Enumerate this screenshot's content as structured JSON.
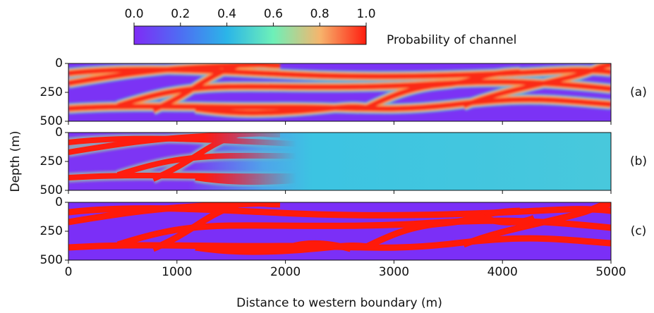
{
  "chart_data": {
    "type": "heatmap",
    "xlabel": "Distance to western boundary (m)",
    "ylabel": "Depth (m)",
    "xlim": [
      0,
      5000
    ],
    "xticks": [
      0,
      1000,
      2000,
      3000,
      4000,
      5000
    ],
    "panels": [
      {
        "label": "(a)",
        "ylim": [
          500,
          0
        ],
        "yticks": [
          0,
          250,
          500
        ]
      },
      {
        "label": "(b)",
        "ylim": [
          500,
          0
        ],
        "yticks": [
          0,
          250,
          500
        ]
      },
      {
        "label": "(c)",
        "ylim": [
          500,
          0
        ],
        "yticks": [
          0,
          250,
          500
        ]
      }
    ],
    "colorbar": {
      "label": "Probability of channel",
      "lim": [
        0,
        1
      ],
      "ticks": [
        {
          "value": 0,
          "label": "0.0"
        },
        {
          "value": 0.2,
          "label": "0.2"
        },
        {
          "value": 0.4,
          "label": "0.4"
        },
        {
          "value": 0.6,
          "label": "0.6"
        },
        {
          "value": 0.8,
          "label": "0.8"
        },
        {
          "value": 1,
          "label": "1.0"
        }
      ]
    }
  }
}
